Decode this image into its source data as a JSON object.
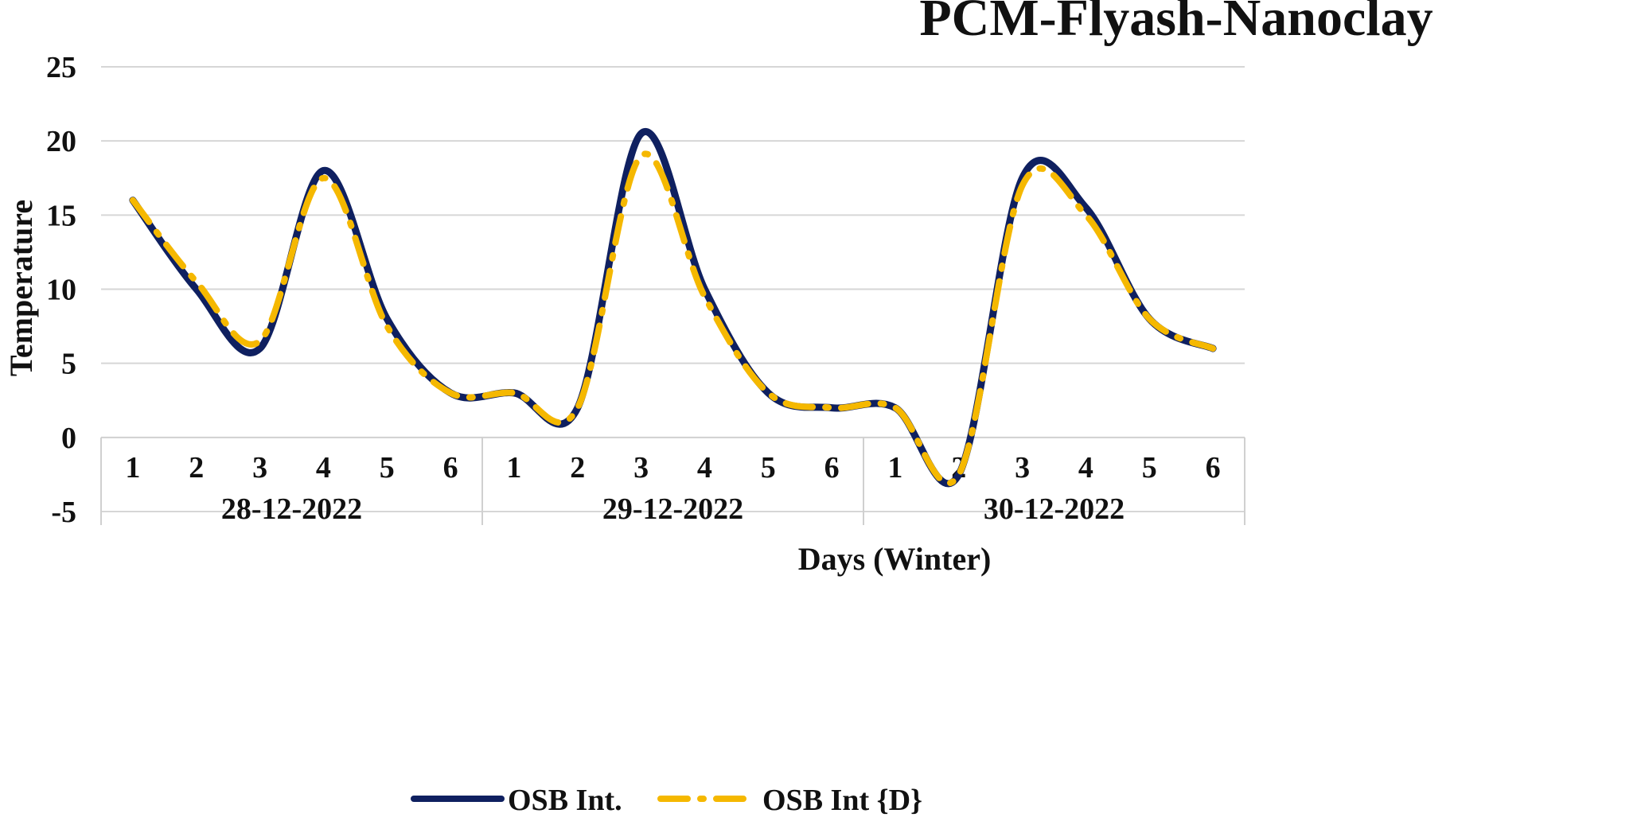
{
  "chart_data": {
    "type": "line",
    "title": "PCM-Flyash-Nanoclay",
    "xlabel": "Days (Winter)",
    "ylabel": "Temperature",
    "ylim": [
      -5,
      25
    ],
    "yticks": [
      -5,
      0,
      5,
      10,
      15,
      20,
      25
    ],
    "grid": true,
    "legend_position": "bottom",
    "groups": [
      {
        "label": "28-12-2022",
        "categories": [
          "1",
          "2",
          "3",
          "4",
          "5",
          "6"
        ]
      },
      {
        "label": "29-12-2022",
        "categories": [
          "1",
          "2",
          "3",
          "4",
          "5",
          "6"
        ]
      },
      {
        "label": "30-12-2022",
        "categories": [
          "1",
          "2",
          "3",
          "4",
          "5",
          "6"
        ]
      }
    ],
    "series": [
      {
        "name": "OSB Int.",
        "color": "#0f2060",
        "style": "solid",
        "values": [
          16,
          10,
          6,
          18,
          8,
          3,
          3,
          2,
          20.5,
          10,
          3,
          2,
          2,
          -2.5,
          17.5,
          15.5,
          8,
          6
        ]
      },
      {
        "name": "OSB Int {D}",
        "color": "#f5b800",
        "style": "dash-dot",
        "values": [
          16,
          10.5,
          6.5,
          17.5,
          7.5,
          3,
          3,
          2,
          19,
          9.5,
          3,
          2,
          2,
          -2.5,
          17,
          15,
          8,
          6
        ]
      }
    ]
  }
}
